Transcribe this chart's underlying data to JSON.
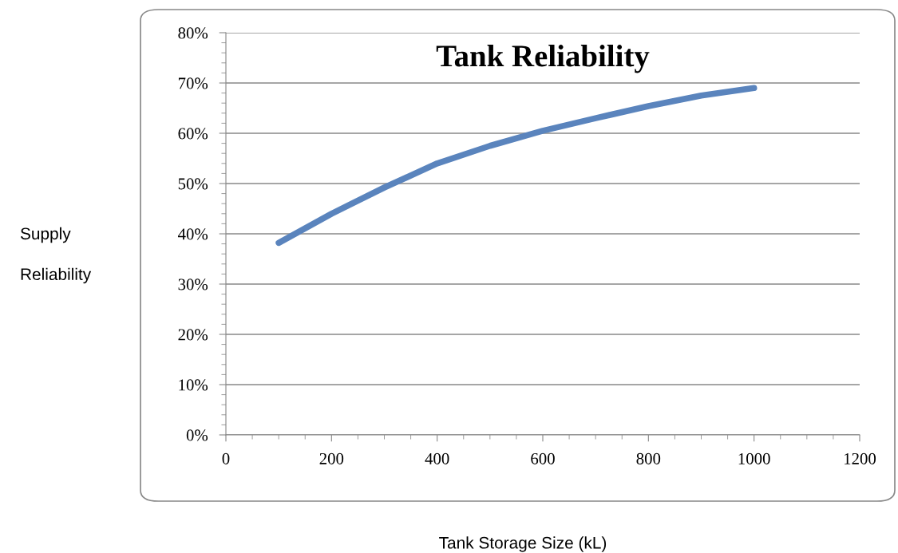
{
  "chart_data": {
    "type": "line",
    "title": "Tank Reliability",
    "xlabel": "Tank Storage Size (kL)",
    "ylabel": "Supply\n\nReliability",
    "x": [
      100,
      200,
      300,
      400,
      500,
      600,
      700,
      800,
      900,
      1000
    ],
    "series": [
      {
        "color": "#5a84bd",
        "values": [
          38.2,
          44,
          49.2,
          54,
          57.5,
          60.5,
          63,
          65.4,
          67.5,
          69
        ]
      }
    ],
    "xlim": [
      0,
      1200
    ],
    "xticks": [
      0,
      200,
      400,
      600,
      800,
      1000,
      1200
    ],
    "ylim": [
      0,
      80
    ],
    "yticks": [
      {
        "value": 0,
        "label": "0%"
      },
      {
        "value": 10,
        "label": "10%"
      },
      {
        "value": 20,
        "label": "20%"
      },
      {
        "value": 30,
        "label": "30%"
      },
      {
        "value": 40,
        "label": "40%"
      },
      {
        "value": 50,
        "label": "50%"
      },
      {
        "value": 60,
        "label": "60%"
      },
      {
        "value": 70,
        "label": "70%"
      },
      {
        "value": 80,
        "label": "80%"
      }
    ],
    "grid": "y",
    "legend": false,
    "marker": "none",
    "line_style": "solid"
  }
}
